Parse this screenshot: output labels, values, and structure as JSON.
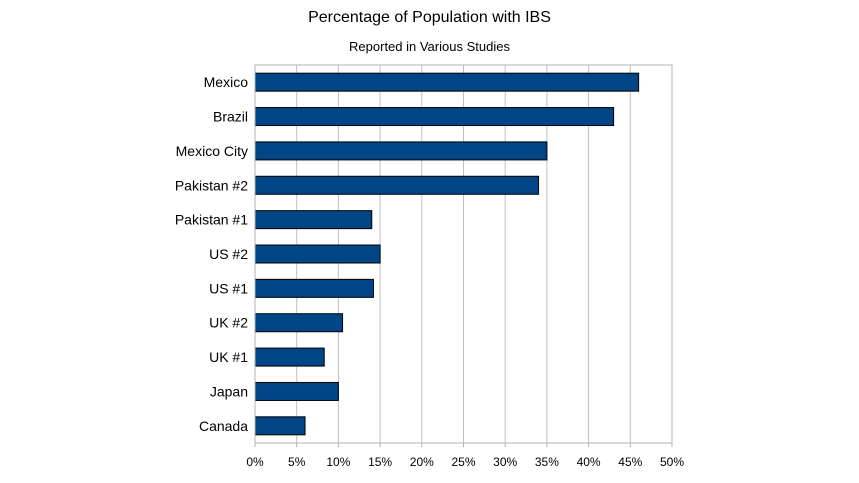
{
  "chart_data": {
    "type": "bar",
    "orientation": "horizontal",
    "title": "Percentage of Population with IBS",
    "subtitle": "Reported in Various Studies",
    "categories": [
      "Mexico",
      "Brazil",
      "Mexico City",
      "Pakistan #2",
      "Pakistan #1",
      "US #2",
      "US #1",
      "UK #2",
      "UK #1",
      "Japan",
      "Canada"
    ],
    "values": [
      46,
      43,
      35,
      34,
      14,
      15,
      14.2,
      10.5,
      8.3,
      10,
      6
    ],
    "xlim": [
      0,
      50
    ],
    "xticks": [
      0,
      5,
      10,
      15,
      20,
      25,
      30,
      35,
      40,
      45,
      50
    ],
    "xtick_labels": [
      "0%",
      "5%",
      "10%",
      "15%",
      "20%",
      "25%",
      "30%",
      "35%",
      "40%",
      "45%",
      "50%"
    ],
    "grid": true,
    "bar_color": "#004586"
  }
}
